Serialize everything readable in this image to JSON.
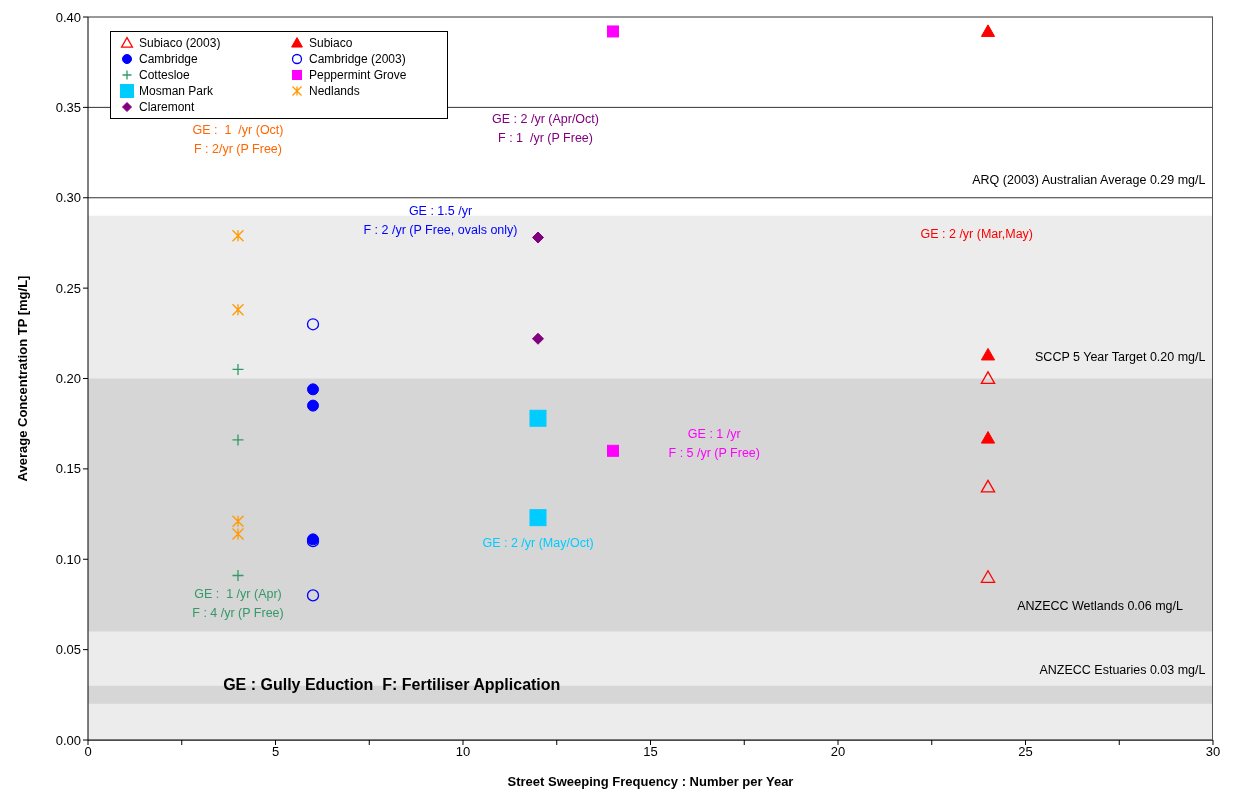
{
  "chart_data": {
    "type": "scatter",
    "xlabel": "Street Sweeping Frequency : Number per Year",
    "ylabel": "Average Concentration TP [mg/L]",
    "xlim": [
      0,
      30
    ],
    "xticks": [
      0,
      {
        "value": 2.5,
        "label": null
      },
      5,
      {
        "value": 7.5,
        "label": null
      },
      10,
      {
        "value": 12.5,
        "label": null
      },
      15,
      {
        "value": 17.5,
        "label": null
      },
      20,
      {
        "value": 22.5,
        "label": null
      },
      25,
      {
        "value": 27.5,
        "label": null
      },
      30
    ],
    "ylim": [
      0,
      0.4
    ],
    "yticks": [
      {
        "value": 0,
        "label": "0.00"
      },
      {
        "value": 0.05,
        "label": "0.05"
      },
      {
        "value": 0.1,
        "label": "0.10"
      },
      {
        "value": 0.15,
        "label": "0.15"
      },
      {
        "value": 0.2,
        "label": "0.20"
      },
      {
        "value": 0.25,
        "label": "0.25"
      },
      {
        "value": 0.3,
        "label": "0.30"
      },
      {
        "value": 0.35,
        "label": "0.35"
      },
      {
        "value": 0.4,
        "label": "0.40"
      }
    ],
    "grid": "y",
    "legend": "top left",
    "series": [
      {
        "name": "Subiaco (2003)",
        "color": "#ff0000",
        "marker": "triangle",
        "x": [
          24,
          24,
          24
        ],
        "values": [
          0.2,
          0.14,
          0.09
        ]
      },
      {
        "name": "Subiaco",
        "color": "#ff0000",
        "marker": "triangle",
        "x": [
          24,
          24,
          24
        ],
        "values": [
          0.392,
          0.213,
          0.167
        ]
      },
      {
        "name": "Cambridge",
        "color": "#0000ff",
        "marker": "circle",
        "x": [
          6,
          6,
          6
        ],
        "values": [
          0.194,
          0.185,
          0.111
        ]
      },
      {
        "name": "Cambridge (2003)",
        "color": "#0000ff",
        "marker": "circle",
        "x": [
          6,
          6,
          6
        ],
        "values": [
          0.23,
          0.11,
          0.08
        ]
      },
      {
        "name": "Cottesloe",
        "color": "#339966",
        "marker": "cross",
        "x": [
          4,
          4,
          4
        ],
        "values": [
          0.205,
          0.166,
          0.091
        ]
      },
      {
        "name": "Peppermint Grove",
        "color": "#ff00ff",
        "marker": "square",
        "x": [
          14,
          14
        ],
        "values": [
          0.392,
          0.16
        ]
      },
      {
        "name": "Mosman Park",
        "color": "#00ccff",
        "marker": "square",
        "x": [
          12,
          12
        ],
        "values": [
          0.178,
          0.123
        ]
      },
      {
        "name": "Nedlands",
        "color": "#ff9900",
        "marker": "cross",
        "x": [
          4,
          4,
          4,
          4
        ],
        "values": [
          0.279,
          0.238,
          0.121,
          0.114
        ]
      },
      {
        "name": "Claremont",
        "color": "#800080",
        "marker": "diamond",
        "x": [
          12,
          12
        ],
        "values": [
          0.278,
          0.222
        ]
      }
    ],
    "bands": [
      {
        "axis": "y",
        "from": 0,
        "to": 0.29,
        "color": "#ececec"
      },
      {
        "axis": "y",
        "from": 0.06,
        "to": 0.2,
        "color": "#d6d6d6"
      },
      {
        "axis": "y",
        "from": 0.02,
        "to": 0.03,
        "color": "#d6d6d6"
      }
    ],
    "annotations": [
      "ARQ (2003) Australian Average 0.29 mg/L",
      "SCCP 5 Year Target 0.20 mg/L",
      "ANZECC Wetlands 0.06 mg/L",
      "ANZECC Estuaries 0.03 mg/L",
      "GE :  1  /yr (Oct)\nF : 2/yr (P Free)",
      "GE : 2 /yr (Apr/Oct)\nF : 1  /yr (P Free)",
      "GE : 1.5 /yr\nF : 2 /yr (P Free, ovals only)",
      "GE : 2 /yr (Mar,May)",
      "GE : 1 /yr\nF : 5 /yr (P Free)",
      "GE : 2 /yr (May/Oct)",
      "GE :  1 /yr (Apr)\nF : 4 /yr (P Free)",
      "GE : Gully Eduction  F: Fertiliser Application"
    ]
  }
}
